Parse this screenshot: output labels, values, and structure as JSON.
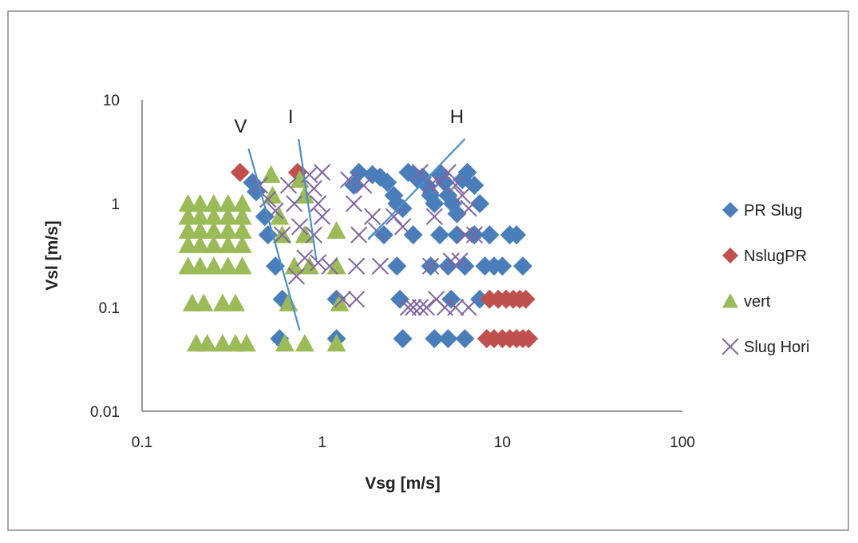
{
  "chart_data": {
    "type": "scatter",
    "title": "",
    "xlabel": "Vsg [m/s]",
    "ylabel": "Vsl [m/s]",
    "x_scale": "log",
    "y_scale": "log",
    "xlim": [
      0.1,
      100
    ],
    "ylim": [
      0.01,
      10
    ],
    "x_ticks": [
      {
        "value": 0.1,
        "label": "0.1"
      },
      {
        "value": 1,
        "label": "1"
      },
      {
        "value": 10,
        "label": "10"
      },
      {
        "value": 100,
        "label": "100"
      }
    ],
    "y_ticks": [
      {
        "value": 0.01,
        "label": "0.01"
      },
      {
        "value": 0.1,
        "label": "0.1"
      },
      {
        "value": 1,
        "label": "1"
      },
      {
        "value": 10,
        "label": "10"
      }
    ],
    "grid": false,
    "legend": "right",
    "series": [
      {
        "name": "PR Slug",
        "marker": "diamond",
        "color": "#4a7ebb",
        "points": [
          [
            0.41,
            1.6
          ],
          [
            0.43,
            1.3
          ],
          [
            0.48,
            0.75
          ],
          [
            0.5,
            0.5
          ],
          [
            0.55,
            0.25
          ],
          [
            0.6,
            0.12
          ],
          [
            0.58,
            0.05
          ],
          [
            1.2,
            0.12
          ],
          [
            1.2,
            0.05
          ],
          [
            1.5,
            1.5
          ],
          [
            1.6,
            2.0
          ],
          [
            1.9,
            1.9
          ],
          [
            2.1,
            1.8
          ],
          [
            2.3,
            1.6
          ],
          [
            2.5,
            1.2
          ],
          [
            2.6,
            1.0
          ],
          [
            2.8,
            0.9
          ],
          [
            3.0,
            2.0
          ],
          [
            3.2,
            1.9
          ],
          [
            3.4,
            1.7
          ],
          [
            3.6,
            1.8
          ],
          [
            3.8,
            1.5
          ],
          [
            4.0,
            1.2
          ],
          [
            4.2,
            1.0
          ],
          [
            4.5,
            1.9
          ],
          [
            4.8,
            1.6
          ],
          [
            5.0,
            1.2
          ],
          [
            5.3,
            1.0
          ],
          [
            5.6,
            0.8
          ],
          [
            6.0,
            1.7
          ],
          [
            6.4,
            2.0
          ],
          [
            7.0,
            1.5
          ],
          [
            7.5,
            1.0
          ],
          [
            2.2,
            0.5
          ],
          [
            2.6,
            0.25
          ],
          [
            2.7,
            0.12
          ],
          [
            2.8,
            0.05
          ],
          [
            3.2,
            0.5
          ],
          [
            4.0,
            0.25
          ],
          [
            4.2,
            0.05
          ],
          [
            4.5,
            0.5
          ],
          [
            5.0,
            0.25
          ],
          [
            5.2,
            0.12
          ],
          [
            5.0,
            0.05
          ],
          [
            5.6,
            0.5
          ],
          [
            6.2,
            0.25
          ],
          [
            6.2,
            0.05
          ],
          [
            7.0,
            0.5
          ],
          [
            7.5,
            0.12
          ],
          [
            8.0,
            0.25
          ],
          [
            8.5,
            0.5
          ],
          [
            9.0,
            0.25
          ],
          [
            10.0,
            0.25
          ],
          [
            11.0,
            0.5
          ],
          [
            12.0,
            0.5
          ],
          [
            13.0,
            0.25
          ]
        ]
      },
      {
        "name": "NslugPR",
        "marker": "diamond",
        "color": "#c0504d",
        "points": [
          [
            0.35,
            2.0
          ],
          [
            0.73,
            2.0
          ],
          [
            8.5,
            0.12
          ],
          [
            9.5,
            0.12
          ],
          [
            10.5,
            0.12
          ],
          [
            11.5,
            0.12
          ],
          [
            12.5,
            0.12
          ],
          [
            13.5,
            0.12
          ],
          [
            8.2,
            0.05
          ],
          [
            9.0,
            0.05
          ],
          [
            10.0,
            0.05
          ],
          [
            11.0,
            0.05
          ],
          [
            12.0,
            0.05
          ],
          [
            13.0,
            0.05
          ],
          [
            14.0,
            0.05
          ]
        ]
      },
      {
        "name": "vert",
        "marker": "triangle",
        "color": "#9bbb59",
        "points": [
          [
            0.18,
            1.0
          ],
          [
            0.21,
            1.0
          ],
          [
            0.25,
            1.0
          ],
          [
            0.3,
            1.0
          ],
          [
            0.36,
            1.0
          ],
          [
            0.18,
            0.75
          ],
          [
            0.21,
            0.75
          ],
          [
            0.25,
            0.75
          ],
          [
            0.3,
            0.75
          ],
          [
            0.36,
            0.75
          ],
          [
            0.18,
            0.55
          ],
          [
            0.21,
            0.55
          ],
          [
            0.25,
            0.55
          ],
          [
            0.3,
            0.55
          ],
          [
            0.36,
            0.55
          ],
          [
            0.18,
            0.4
          ],
          [
            0.21,
            0.4
          ],
          [
            0.25,
            0.4
          ],
          [
            0.3,
            0.4
          ],
          [
            0.36,
            0.4
          ],
          [
            0.18,
            0.25
          ],
          [
            0.21,
            0.25
          ],
          [
            0.25,
            0.25
          ],
          [
            0.3,
            0.25
          ],
          [
            0.36,
            0.25
          ],
          [
            0.19,
            0.11
          ],
          [
            0.22,
            0.11
          ],
          [
            0.28,
            0.11
          ],
          [
            0.33,
            0.11
          ],
          [
            0.2,
            0.045
          ],
          [
            0.23,
            0.045
          ],
          [
            0.28,
            0.045
          ],
          [
            0.33,
            0.045
          ],
          [
            0.38,
            0.045
          ],
          [
            0.52,
            1.9
          ],
          [
            0.53,
            1.2
          ],
          [
            0.58,
            0.75
          ],
          [
            0.6,
            0.5
          ],
          [
            0.7,
            0.25
          ],
          [
            0.65,
            0.11
          ],
          [
            0.75,
            1.7
          ],
          [
            0.8,
            1.2
          ],
          [
            0.8,
            0.5
          ],
          [
            0.85,
            0.25
          ],
          [
            0.8,
            0.045
          ],
          [
            0.62,
            0.045
          ],
          [
            1.2,
            0.55
          ],
          [
            1.2,
            0.25
          ],
          [
            1.25,
            0.11
          ],
          [
            1.2,
            0.045
          ]
        ]
      },
      {
        "name": "Slug Hori",
        "marker": "x",
        "color": "#8064a2",
        "points": [
          [
            0.45,
            1.5
          ],
          [
            0.5,
            1.1
          ],
          [
            0.55,
            0.85
          ],
          [
            0.6,
            0.5
          ],
          [
            0.65,
            1.5
          ],
          [
            0.7,
            1.0
          ],
          [
            0.75,
            0.6
          ],
          [
            0.72,
            0.2
          ],
          [
            0.8,
            0.3
          ],
          [
            0.85,
            1.9
          ],
          [
            0.9,
            1.4
          ],
          [
            0.95,
            1.0
          ],
          [
            1.0,
            0.75
          ],
          [
            0.9,
            0.5
          ],
          [
            1.0,
            2.0
          ],
          [
            0.95,
            0.27
          ],
          [
            1.1,
            0.25
          ],
          [
            1.3,
            0.12
          ],
          [
            1.4,
            1.7
          ],
          [
            1.5,
            1.0
          ],
          [
            1.6,
            0.5
          ],
          [
            1.55,
            0.25
          ],
          [
            1.55,
            0.12
          ],
          [
            1.7,
            1.5
          ],
          [
            1.9,
            0.75
          ],
          [
            2.0,
            0.55
          ],
          [
            2.1,
            0.25
          ],
          [
            2.5,
            0.75
          ],
          [
            2.8,
            0.6
          ],
          [
            3.0,
            0.1
          ],
          [
            3.2,
            0.1
          ],
          [
            3.5,
            0.1
          ],
          [
            3.8,
            0.1
          ],
          [
            4.0,
            0.25
          ],
          [
            4.3,
            0.12
          ],
          [
            4.8,
            0.1
          ],
          [
            5.2,
            0.28
          ],
          [
            5.5,
            0.1
          ],
          [
            5.8,
            0.28
          ],
          [
            6.2,
            0.5
          ],
          [
            6.5,
            0.1
          ],
          [
            7.0,
            0.5
          ],
          [
            3.5,
            2.0
          ],
          [
            4.0,
            1.5
          ],
          [
            4.5,
            1.6
          ],
          [
            5.0,
            2.0
          ],
          [
            5.5,
            1.5
          ],
          [
            6.0,
            1.2
          ],
          [
            4.2,
            0.75
          ],
          [
            6.5,
            0.9
          ]
        ]
      }
    ],
    "lines": [
      {
        "label": "V",
        "from": [
          0.39,
          3.4
        ],
        "to": [
          0.75,
          0.06
        ]
      },
      {
        "label": "I",
        "from": [
          0.74,
          4.2
        ],
        "to": [
          0.93,
          0.28
        ]
      },
      {
        "label": "H",
        "from": [
          1.8,
          0.45
        ],
        "to": [
          6.2,
          4.2
        ]
      }
    ]
  }
}
